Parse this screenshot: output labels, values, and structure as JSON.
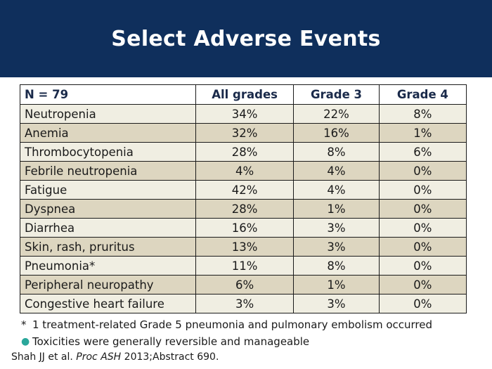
{
  "title": "Select Adverse Events",
  "table": {
    "headers": [
      "N = 79",
      "All grades",
      "Grade 3",
      "Grade 4"
    ],
    "rows": [
      [
        "Neutropenia",
        "34%",
        "22%",
        "8%"
      ],
      [
        "Anemia",
        "32%",
        "16%",
        "1%"
      ],
      [
        "Thrombocytopenia",
        "28%",
        "8%",
        "6%"
      ],
      [
        "Febrile neutropenia",
        "4%",
        "4%",
        "0%"
      ],
      [
        "Fatigue",
        "42%",
        "4%",
        "0%"
      ],
      [
        "Dyspnea",
        "28%",
        "1%",
        "0%"
      ],
      [
        "Diarrhea",
        "16%",
        "3%",
        "0%"
      ],
      [
        "Skin, rash, pruritus",
        "13%",
        "3%",
        "0%"
      ],
      [
        "Pneumonia*",
        "11%",
        "8%",
        "0%"
      ],
      [
        "Peripheral neuropathy",
        "6%",
        "1%",
        "0%"
      ],
      [
        "Congestive heart failure",
        "3%",
        "3%",
        "0%"
      ]
    ]
  },
  "notes": {
    "footnote_marker": "*",
    "footnote_text": "1 treatment-related Grade 5 pneumonia and pulmonary embolism occurred",
    "bullet_text": "Toxicities were generally reversible and manageable"
  },
  "citation": {
    "authors": "Shah JJ et al.",
    "journal": "Proc ASH",
    "rest": "2013;Abstract 690."
  },
  "colors": {
    "title_bar": "#0f2f5c",
    "row_light": "#f0eee2",
    "row_dark": "#ddd6c0",
    "bullet": "#2aa79b"
  }
}
